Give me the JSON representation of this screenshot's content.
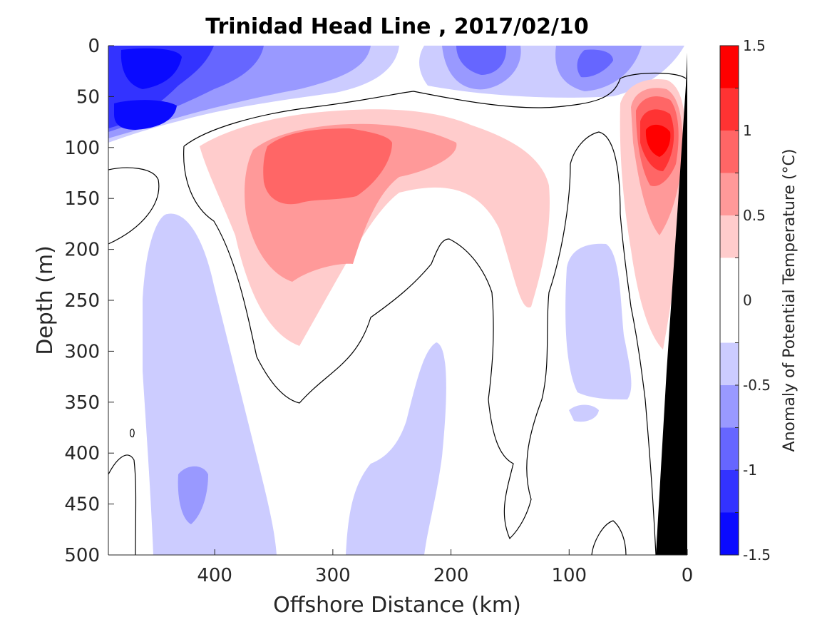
{
  "chart_data": {
    "type": "heatmap",
    "title": "Trinidad Head Line , 2017/02/10",
    "xlabel": "Offshore Distance (km)",
    "ylabel": "Depth (m)",
    "x_axis": {
      "reversed": true,
      "range": [
        490,
        0
      ],
      "ticks": [
        400,
        300,
        200,
        100,
        0
      ]
    },
    "y_axis": {
      "reversed": true,
      "range": [
        0,
        500
      ],
      "ticks": [
        0,
        50,
        100,
        150,
        200,
        250,
        300,
        350,
        400,
        450,
        500
      ]
    },
    "colorbar": {
      "label": "Anomaly of Potential Temperature (°C)",
      "range": [
        -1.5,
        1.5
      ],
      "ticks": [
        -1.5,
        -1,
        -0.5,
        0,
        0.5,
        1,
        1.5
      ],
      "levels": [
        -1.5,
        -1.25,
        -1.0,
        -0.75,
        -0.5,
        -0.25,
        0.25,
        0.5,
        0.75,
        1.0,
        1.25,
        1.5
      ],
      "colors": [
        "#0a0aff",
        "#3333ff",
        "#6666ff",
        "#9999ff",
        "#ccccff",
        "#ffffff",
        "#ffcccc",
        "#ff9999",
        "#ff6666",
        "#ff3333",
        "#ff0000"
      ]
    },
    "grid": false,
    "legend": "colorbar-right",
    "features": [
      {
        "name": "cold surface anomaly offshore",
        "x_range": [
          490,
          370
        ],
        "depth_range": [
          0,
          100
        ],
        "anomaly_min": -1.25
      },
      {
        "name": "subsurface warm anomaly core",
        "x_range": [
          380,
          190
        ],
        "depth_range": [
          70,
          300
        ],
        "anomaly_max": 1.0
      },
      {
        "name": "nearshore warm anomaly",
        "x_range": [
          60,
          15
        ],
        "depth_range": [
          30,
          300
        ],
        "anomaly_max": 1.25
      },
      {
        "name": "deep cool band",
        "x_range": [
          450,
          350
        ],
        "depth_range": [
          160,
          500
        ],
        "anomaly_min": -0.75
      },
      {
        "name": "cool anomaly near shelf",
        "x_range": [
          110,
          45
        ],
        "depth_range": [
          180,
          380
        ],
        "anomaly_min": -0.5
      },
      {
        "name": "bathymetry (continental slope)",
        "x_range": [
          25,
          0
        ],
        "depth_range": [
          0,
          500
        ]
      }
    ],
    "zero_contour": true
  },
  "colors": {
    "axis": "#262626",
    "bathymetry": "#000000",
    "contour": "#000000"
  }
}
